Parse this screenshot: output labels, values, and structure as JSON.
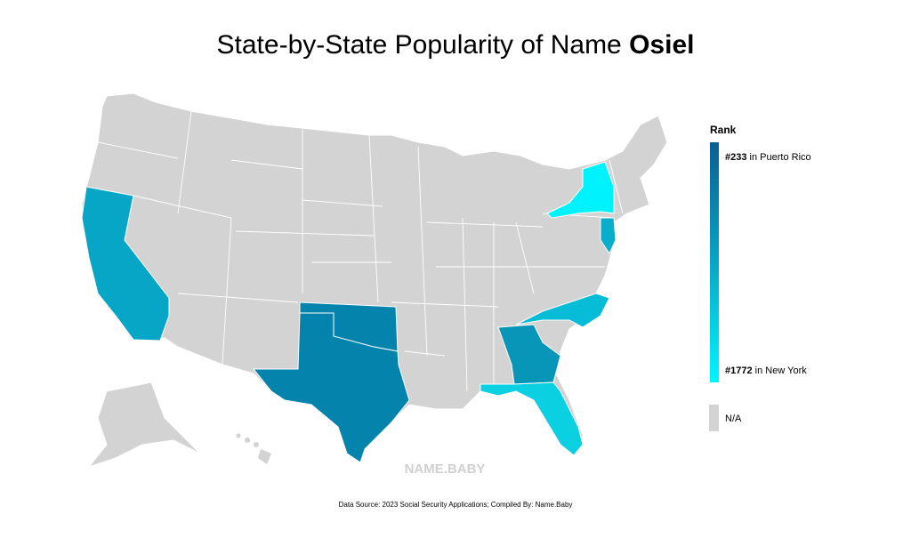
{
  "title": {
    "text": "State-by-State Popularity of Name ",
    "name": "Osiel"
  },
  "legend": {
    "title": "Rank",
    "high": {
      "rank": "#233",
      "place": "in Puerto Rico"
    },
    "low": {
      "rank": "#1772",
      "place": "in New York"
    },
    "na": "N/A"
  },
  "watermark": "NAME.BABY",
  "footer": "Data Source: 2023 Social Security Applications; Compiled By: Name.Baby"
}
